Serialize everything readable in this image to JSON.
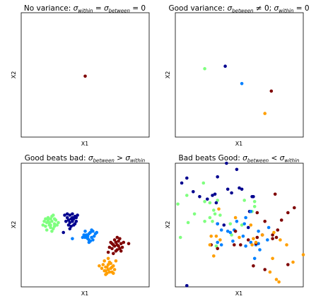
{
  "colors": {
    "darkred": "#7f0000",
    "navy": "#00008f",
    "blue": "#0080ff",
    "green": "#7fff7f",
    "orange": "#ff9f00"
  },
  "chart_data": [
    {
      "type": "scatter",
      "title": "No variance: σwithin = σbetween = 0",
      "title_parts": {
        "lead": "No variance: ",
        "s1": "within",
        "mid": " = ",
        "s2": "between",
        "tail": " = 0"
      },
      "xlabel": "X1",
      "ylabel": "X2",
      "xlim": [
        0,
        10
      ],
      "ylim": [
        0,
        10
      ],
      "grid": false,
      "series": [
        {
          "color": "darkred",
          "points": [
            [
              5,
              4.9
            ]
          ]
        }
      ]
    },
    {
      "type": "scatter",
      "title": "Good variance: σbetween ≠ 0; σwithin = 0",
      "title_parts": {
        "lead": "Good variance: ",
        "s1": "between",
        "mid": " ≠ 0; ",
        "s2": "within",
        "tail": " = 0"
      },
      "xlabel": "X1",
      "ylabel": "X2",
      "xlim": [
        0,
        10
      ],
      "ylim": [
        0,
        10
      ],
      "grid": false,
      "series": [
        {
          "color": "green",
          "points": [
            [
              2.3,
              5.5
            ]
          ]
        },
        {
          "color": "navy",
          "points": [
            [
              3.9,
              5.7
            ]
          ]
        },
        {
          "color": "blue",
          "points": [
            [
              5.2,
              4.3
            ]
          ]
        },
        {
          "color": "darkred",
          "points": [
            [
              7.5,
              3.7
            ]
          ]
        },
        {
          "color": "orange",
          "points": [
            [
              7.0,
              1.9
            ]
          ]
        }
      ]
    },
    {
      "type": "scatter",
      "title": "Good beats bad: σbetween > σwithin",
      "title_parts": {
        "lead": "Good beats bad: ",
        "s1": "between",
        "mid": " > ",
        "s2": "within",
        "tail": ""
      },
      "xlabel": "X1",
      "ylabel": "X2",
      "xlim": [
        0,
        10
      ],
      "ylim": [
        0,
        10
      ],
      "grid": false,
      "series": [
        {
          "color": "green",
          "points": [
            [
              2.0,
              5.2
            ],
            [
              2.2,
              5.0
            ],
            [
              2.4,
              5.3
            ],
            [
              1.9,
              4.9
            ],
            [
              2.3,
              4.8
            ],
            [
              2.6,
              5.1
            ],
            [
              2.1,
              5.6
            ],
            [
              2.5,
              4.7
            ],
            [
              1.8,
              5.3
            ],
            [
              2.7,
              5.4
            ],
            [
              2.3,
              5.5
            ],
            [
              2.0,
              4.6
            ],
            [
              2.4,
              5.7
            ],
            [
              2.8,
              5.0
            ],
            [
              2.2,
              5.2
            ],
            [
              1.7,
              5.0
            ],
            [
              2.6,
              4.9
            ],
            [
              2.1,
              5.4
            ],
            [
              2.9,
              5.2
            ],
            [
              2.4,
              4.5
            ],
            [
              2.5,
              5.8
            ],
            [
              1.9,
              5.5
            ],
            [
              2.3,
              5.0
            ],
            [
              2.6,
              5.5
            ]
          ]
        },
        {
          "color": "navy",
          "points": [
            [
              3.6,
              5.6
            ],
            [
              3.8,
              5.8
            ],
            [
              4.0,
              5.3
            ],
            [
              3.5,
              5.3
            ],
            [
              4.2,
              5.7
            ],
            [
              3.7,
              5.0
            ],
            [
              4.0,
              5.9
            ],
            [
              3.9,
              5.5
            ],
            [
              4.3,
              5.3
            ],
            [
              3.4,
              5.8
            ],
            [
              4.1,
              5.0
            ],
            [
              3.8,
              5.2
            ],
            [
              4.4,
              5.8
            ],
            [
              3.6,
              5.9
            ],
            [
              4.2,
              5.1
            ],
            [
              3.9,
              4.9
            ],
            [
              4.0,
              5.6
            ],
            [
              3.3,
              4.4
            ],
            [
              3.7,
              5.4
            ],
            [
              4.1,
              5.5
            ],
            [
              3.8,
              4.7
            ],
            [
              4.3,
              5.6
            ]
          ]
        },
        {
          "color": "blue",
          "points": [
            [
              5.1,
              4.2
            ],
            [
              5.3,
              4.3
            ],
            [
              5.5,
              4.0
            ],
            [
              5.0,
              4.0
            ],
            [
              5.6,
              4.5
            ],
            [
              5.2,
              3.9
            ],
            [
              5.7,
              4.1
            ],
            [
              4.9,
              4.2
            ],
            [
              5.4,
              4.4
            ],
            [
              5.8,
              4.3
            ],
            [
              5.3,
              3.6
            ],
            [
              5.6,
              3.8
            ],
            [
              5.0,
              4.5
            ],
            [
              5.5,
              4.6
            ],
            [
              4.8,
              4.0
            ],
            [
              5.2,
              4.1
            ],
            [
              5.9,
              4.4
            ],
            [
              5.3,
              3.8
            ],
            [
              4.0,
              3.9
            ],
            [
              5.4,
              3.7
            ]
          ]
        },
        {
          "color": "darkred",
          "points": [
            [
              7.2,
              3.4
            ],
            [
              7.4,
              3.6
            ],
            [
              7.6,
              3.3
            ],
            [
              7.1,
              3.1
            ],
            [
              7.8,
              3.5
            ],
            [
              7.3,
              3.8
            ],
            [
              7.5,
              3.0
            ],
            [
              7.7,
              3.9
            ],
            [
              7.0,
              3.6
            ],
            [
              7.9,
              3.2
            ],
            [
              7.4,
              2.9
            ],
            [
              8.0,
              3.6
            ],
            [
              6.9,
              3.2
            ],
            [
              7.6,
              3.7
            ],
            [
              8.4,
              3.5
            ],
            [
              7.2,
              2.7
            ],
            [
              7.5,
              4.0
            ],
            [
              7.8,
              2.9
            ],
            [
              7.3,
              3.3
            ],
            [
              6.8,
              2.8
            ],
            [
              7.7,
              3.1
            ],
            [
              7.1,
              3.5
            ],
            [
              7.5,
              3.4
            ]
          ]
        },
        {
          "color": "orange",
          "points": [
            [
              6.6,
              1.6
            ],
            [
              6.8,
              1.8
            ],
            [
              7.0,
              1.5
            ],
            [
              6.5,
              1.3
            ],
            [
              7.2,
              1.7
            ],
            [
              6.7,
              1.1
            ],
            [
              6.9,
              2.0
            ],
            [
              7.1,
              1.2
            ],
            [
              6.4,
              1.8
            ],
            [
              7.3,
              1.4
            ],
            [
              6.8,
              1.4
            ],
            [
              6.6,
              1.0
            ],
            [
              7.0,
              1.9
            ],
            [
              6.3,
              1.5
            ],
            [
              6.9,
              1.2
            ],
            [
              7.4,
              2.1
            ],
            [
              6.7,
              1.6
            ],
            [
              6.1,
              1.7
            ],
            [
              7.2,
              1.1
            ],
            [
              6.5,
              2.1
            ],
            [
              6.8,
              2.3
            ],
            [
              7.1,
              1.6
            ],
            [
              6.6,
              1.3
            ]
          ]
        }
      ]
    },
    {
      "type": "scatter",
      "title": "Bad beats Good: σbetween < σwithin",
      "title_parts": {
        "lead": "Bad beats Good: ",
        "s1": "between",
        "mid": " < ",
        "s2": "within",
        "tail": ""
      },
      "xlabel": "X1",
      "ylabel": "X2",
      "xlim": [
        0,
        10
      ],
      "ylim": [
        0,
        10
      ],
      "grid": false,
      "series": [
        {
          "color": "green",
          "points": [
            [
              0.2,
              6.7
            ],
            [
              2.3,
              6.9
            ],
            [
              2.7,
              6.8
            ],
            [
              3.3,
              7.0
            ],
            [
              1.0,
              5.2
            ],
            [
              2.3,
              5.3
            ],
            [
              4.4,
              4.2
            ],
            [
              6.0,
              6.1
            ],
            [
              6.2,
              6.5
            ],
            [
              4.3,
              5.1
            ],
            [
              1.5,
              5.9
            ],
            [
              2.2,
              8.4
            ],
            [
              0.4,
              4.0
            ],
            [
              3.0,
              6.2
            ],
            [
              3.1,
              5.9
            ],
            [
              6.2,
              6.9
            ],
            [
              3.2,
              3.3
            ],
            [
              2.9,
              5.3
            ],
            [
              5.2,
              5.0
            ],
            [
              0.9,
              7.4
            ],
            [
              3.5,
              5.8
            ],
            [
              2.7,
              5.6
            ],
            [
              5.4,
              7.0
            ]
          ]
        },
        {
          "color": "navy",
          "points": [
            [
              0.5,
              8.4
            ],
            [
              0.9,
              8.8
            ],
            [
              1.4,
              7.7
            ],
            [
              2.5,
              7.1
            ],
            [
              3.1,
              7.5
            ],
            [
              3.3,
              8.9
            ],
            [
              4.4,
              7.6
            ],
            [
              5.0,
              8.0
            ],
            [
              4.8,
              9.5
            ],
            [
              4.0,
              10.0
            ],
            [
              2.9,
              7.4
            ],
            [
              1.9,
              7.3
            ],
            [
              3.3,
              5.1
            ],
            [
              4.1,
              7.9
            ],
            [
              5.7,
              4.8
            ],
            [
              6.0,
              7.3
            ],
            [
              3.8,
              5.0
            ],
            [
              5.2,
              7.9
            ],
            [
              0.9,
              0.1
            ],
            [
              6.1,
              7.3
            ],
            [
              5.8,
              6.1
            ],
            [
              3.2,
              6.8
            ]
          ]
        },
        {
          "color": "blue",
          "points": [
            [
              4.1,
              4.5
            ],
            [
              4.3,
              4.4
            ],
            [
              4.6,
              4.6
            ],
            [
              3.3,
              5.1
            ],
            [
              5.4,
              5.1
            ],
            [
              6.3,
              3.4
            ],
            [
              5.5,
              3.3
            ],
            [
              6.6,
              3.0
            ],
            [
              5.9,
              6.1
            ],
            [
              5.3,
              4.1
            ],
            [
              3.6,
              3.4
            ],
            [
              7.3,
              4.8
            ],
            [
              4.8,
              5.3
            ],
            [
              5.5,
              5.6
            ],
            [
              3.3,
              3.6
            ],
            [
              5.9,
              3.6
            ],
            [
              4.5,
              3.7
            ],
            [
              7.2,
              3.8
            ],
            [
              6.5,
              3.5
            ],
            [
              6.2,
              2.3
            ],
            [
              3.6,
              4.6
            ],
            [
              6.5,
              4.5
            ]
          ]
        },
        {
          "color": "darkred",
          "points": [
            [
              6.3,
              3.5
            ],
            [
              7.0,
              5.3
            ],
            [
              7.6,
              4.2
            ],
            [
              7.9,
              4.0
            ],
            [
              8.0,
              4.6
            ],
            [
              8.8,
              6.0
            ],
            [
              8.8,
              1.8
            ],
            [
              8.3,
              5.4
            ],
            [
              6.1,
              1.7
            ],
            [
              6.4,
              4.0
            ],
            [
              6.4,
              6.0
            ],
            [
              7.6,
              3.9
            ],
            [
              4.6,
              3.4
            ],
            [
              7.0,
              1.4
            ],
            [
              3.3,
              3.1
            ],
            [
              5.1,
              3.4
            ],
            [
              4.7,
              4.5
            ],
            [
              5.7,
              3.8
            ],
            [
              9.3,
              6.4
            ],
            [
              7.8,
              7.5
            ],
            [
              6.8,
              4.2
            ],
            [
              2.8,
              3.4
            ]
          ]
        },
        {
          "color": "orange",
          "points": [
            [
              3.0,
              2.5
            ],
            [
              2.7,
              3.4
            ],
            [
              3.5,
              3.8
            ],
            [
              2.8,
              4.1
            ],
            [
              5.9,
              5.0
            ],
            [
              7.6,
              2.3
            ],
            [
              8.2,
              3.8
            ],
            [
              7.7,
              4.4
            ],
            [
              7.4,
              1.2
            ],
            [
              7.9,
              0.6
            ],
            [
              8.1,
              0.4
            ],
            [
              9.2,
              2.0
            ],
            [
              10.0,
              2.6
            ],
            [
              6.1,
              3.9
            ],
            [
              6.0,
              3.4
            ],
            [
              6.3,
              3.6
            ],
            [
              6.8,
              4.2
            ],
            [
              3.2,
              4.1
            ],
            [
              4.7,
              5.6
            ],
            [
              3.4,
              6.3
            ],
            [
              8.7,
              3.4
            ],
            [
              5.0,
              4.0
            ]
          ]
        }
      ]
    }
  ]
}
